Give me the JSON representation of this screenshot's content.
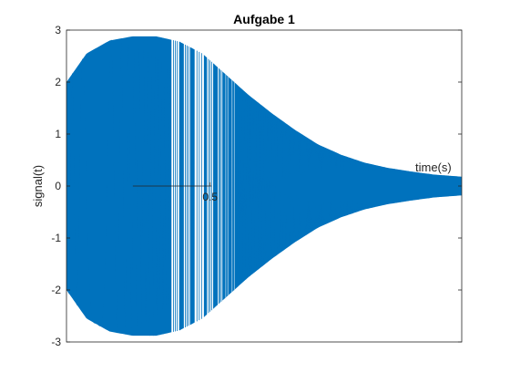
{
  "chart_data": {
    "type": "line",
    "title": "Aufgabe 1",
    "xlabel": "time(s)",
    "ylabel": "signal(t)",
    "xlim": [
      -0.43,
      2.13
    ],
    "ylim": [
      -3,
      3
    ],
    "x_ticks": [
      0.5
    ],
    "x_tick_labels": [
      "0.5"
    ],
    "y_ticks": [
      3,
      2,
      1,
      0,
      -1,
      -2,
      -3
    ],
    "y_tick_labels": [
      "3",
      "2",
      "1",
      "0",
      "-1",
      "-2",
      "-3"
    ],
    "grid": false,
    "legend": "none",
    "series_color": "#0072BD",
    "envelope": {
      "x": [
        -0.43,
        -0.3,
        -0.15,
        0,
        0.15,
        0.3,
        0.45,
        0.6,
        0.75,
        0.9,
        1.05,
        1.2,
        1.35,
        1.5,
        1.65,
        1.8,
        1.95,
        2.13
      ],
      "y": [
        2.0,
        2.55,
        2.8,
        2.88,
        2.88,
        2.78,
        2.55,
        2.15,
        1.75,
        1.4,
        1.08,
        0.8,
        0.6,
        0.45,
        0.35,
        0.28,
        0.22,
        0.18
      ]
    }
  }
}
